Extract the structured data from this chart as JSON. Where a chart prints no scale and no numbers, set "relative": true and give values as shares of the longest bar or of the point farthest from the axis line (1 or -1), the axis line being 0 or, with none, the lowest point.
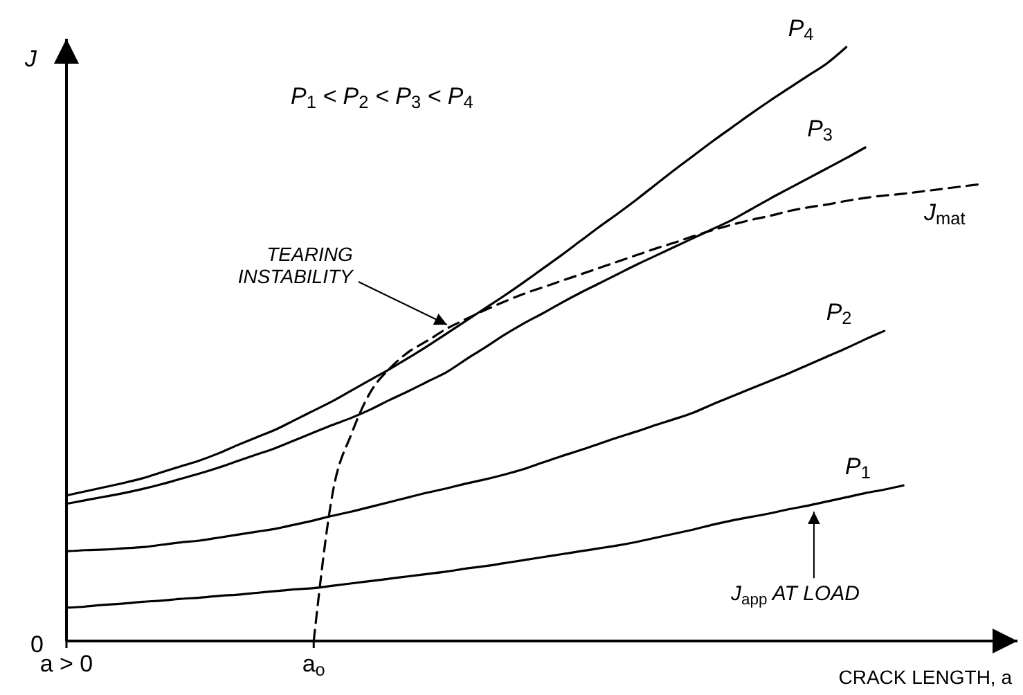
{
  "chart_data": {
    "type": "line",
    "relative": true,
    "xlabel": "CRACK LENGTH, a",
    "ylabel": "J",
    "line_style": "solid",
    "marker": "none",
    "grid": false,
    "categories": [
      "a > 0",
      null,
      null,
      null,
      null,
      null,
      null,
      null,
      null,
      null,
      null,
      null,
      null,
      "a$_{o}$",
      null,
      null,
      null,
      null,
      null,
      null,
      null,
      null,
      null,
      null,
      null,
      null,
      null,
      null,
      null,
      null,
      null,
      null,
      null,
      null,
      null,
      null,
      null,
      null,
      null,
      null,
      null,
      null,
      null,
      null,
      null,
      null,
      null,
      null,
      null,
      null,
      null
    ],
    "series": [
      {
        "name": "P$_{1}$",
        "color": "#000000",
        "values": [
          0.056,
          0.058,
          0.061,
          0.063,
          0.066,
          0.068,
          0.071,
          0.073,
          0.076,
          0.078,
          0.081,
          0.084,
          0.087,
          0.089,
          0.093,
          0.097,
          0.101,
          0.105,
          0.109,
          0.113,
          0.117,
          0.122,
          0.126,
          0.131,
          0.136,
          0.141,
          0.146,
          0.151,
          0.156,
          0.161,
          0.167,
          0.174,
          0.181,
          0.188,
          0.196,
          0.203,
          0.209,
          0.215,
          0.222,
          0.228,
          0.235,
          0.242,
          0.249,
          0.255,
          0.262,
          null,
          null,
          null,
          null,
          null,
          null
        ]
      },
      {
        "name": "P$_{2}$",
        "color": "#000000",
        "values": [
          0.151,
          0.153,
          0.154,
          0.156,
          0.158,
          0.162,
          0.166,
          0.169,
          0.174,
          0.179,
          0.184,
          0.189,
          0.196,
          0.203,
          0.211,
          0.218,
          0.226,
          0.234,
          0.242,
          0.25,
          0.257,
          0.265,
          0.272,
          0.28,
          0.289,
          0.3,
          0.311,
          0.321,
          0.332,
          0.343,
          0.353,
          0.364,
          0.374,
          0.385,
          0.399,
          0.412,
          0.425,
          0.438,
          0.451,
          0.465,
          0.479,
          0.493,
          0.508,
          0.522,
          null,
          null,
          null,
          null,
          null,
          null,
          null
        ]
      },
      {
        "name": "P$_{3}$",
        "color": "#000000",
        "values": [
          0.231,
          0.237,
          0.243,
          0.249,
          0.256,
          0.264,
          0.273,
          0.282,
          0.292,
          0.303,
          0.314,
          0.325,
          0.338,
          0.351,
          0.364,
          0.376,
          0.39,
          0.406,
          0.421,
          0.437,
          0.453,
          0.474,
          0.494,
          0.515,
          0.534,
          0.551,
          0.569,
          0.586,
          0.602,
          0.618,
          0.634,
          0.649,
          0.664,
          0.679,
          0.694,
          0.709,
          0.727,
          0.745,
          0.762,
          0.779,
          0.796,
          0.813,
          0.831,
          null,
          null,
          null,
          null,
          null,
          null,
          null,
          null
        ]
      },
      {
        "name": "P$_{4}$",
        "color": "#000000",
        "values": [
          0.245,
          0.252,
          0.259,
          0.266,
          0.274,
          0.284,
          0.294,
          0.304,
          0.316,
          0.33,
          0.343,
          0.356,
          0.372,
          0.388,
          0.404,
          0.422,
          0.44,
          0.458,
          0.477,
          0.497,
          0.518,
          0.539,
          0.56,
          0.581,
          0.603,
          0.626,
          0.649,
          0.673,
          0.697,
          0.72,
          0.744,
          0.769,
          0.794,
          0.818,
          0.842,
          0.865,
          0.888,
          0.91,
          0.931,
          0.952,
          0.973,
          1,
          null,
          null,
          null,
          null,
          null,
          null,
          null,
          null,
          null
        ]
      },
      {
        "name": "J$_{mat}$",
        "color": "#000000",
        "line_style": "dashed",
        "values": [
          null,
          null,
          null,
          null,
          null,
          null,
          null,
          null,
          null,
          null,
          null,
          null,
          null,
          0,
          0.25,
          0.35,
          0.42,
          0.459,
          0.487,
          0.506,
          0.526,
          0.542,
          0.557,
          0.571,
          0.584,
          0.595,
          0.606,
          0.617,
          0.628,
          0.639,
          0.65,
          0.661,
          0.671,
          0.682,
          0.692,
          0.701,
          0.709,
          0.716,
          0.724,
          0.73,
          0.735,
          0.741,
          0.746,
          0.75,
          0.753,
          0.757,
          0.761,
          0.765,
          0.769,
          null,
          null
        ]
      }
    ],
    "annotations": [
      "P$_{1}$ < P$_{2}$ < P$_{3}$ < P$_{4}$",
      "0",
      "TEARING\nINSTABILITY",
      "J$_{app}$ AT LOAD"
    ]
  }
}
